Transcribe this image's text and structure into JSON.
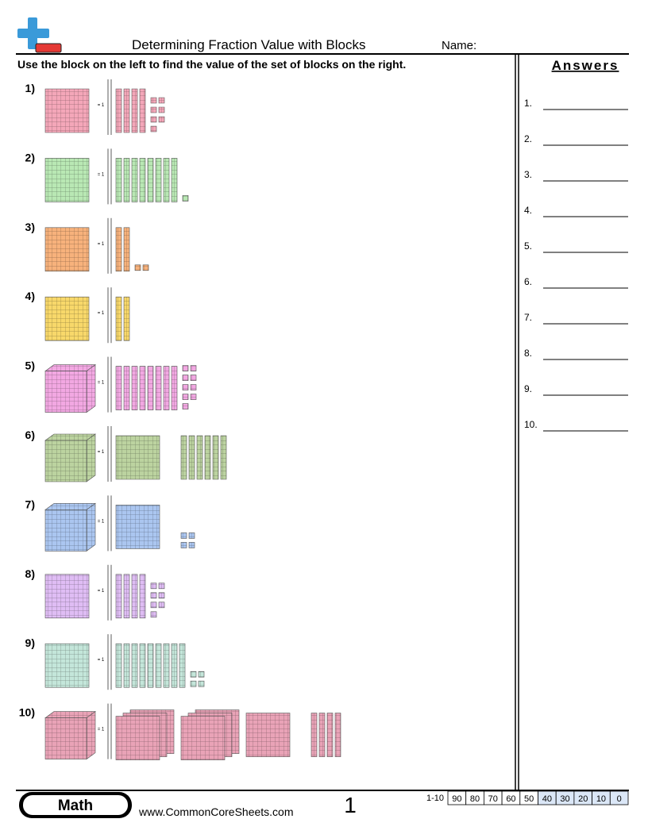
{
  "header": {
    "title": "Determining Fraction Value with Blocks",
    "name_label": "Name:"
  },
  "instructions": "Use the block on the left to find the value of the set of blocks on the right.",
  "problems": [
    {
      "number": "1)",
      "equals": "= 1"
    },
    {
      "number": "2)",
      "equals": "= 1"
    },
    {
      "number": "3)",
      "equals": "= 1"
    },
    {
      "number": "4)",
      "equals": "= 1"
    },
    {
      "number": "5)",
      "equals": "= 1"
    },
    {
      "number": "6)",
      "equals": "= 1"
    },
    {
      "number": "7)",
      "equals": "= 1"
    },
    {
      "number": "8)",
      "equals": "= 1"
    },
    {
      "number": "9)",
      "equals": "= 1"
    },
    {
      "number": "10)",
      "equals": "= 1"
    }
  ],
  "answers": {
    "title": "Answers",
    "numbers": [
      "1.",
      "2.",
      "3.",
      "4.",
      "5.",
      "6.",
      "7.",
      "8.",
      "9.",
      "10."
    ]
  },
  "footer": {
    "subject": "Math",
    "website": "www.CommonCoreSheets.com",
    "page": "1",
    "score_range": "1-10",
    "scores": [
      90,
      80,
      70,
      60,
      50,
      40,
      30,
      20,
      10,
      0
    ]
  }
}
